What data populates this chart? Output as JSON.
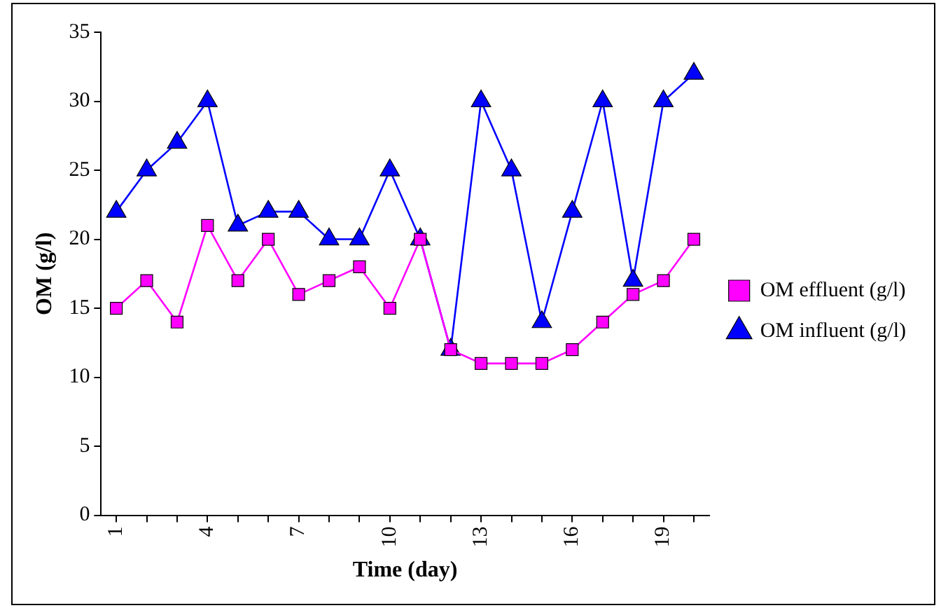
{
  "chart_data": {
    "type": "line",
    "xlabel": "Time (day)",
    "ylabel": "OM (g/l)",
    "categories": [
      "1",
      null,
      null,
      "4",
      null,
      null,
      "7",
      null,
      null,
      "10",
      null,
      null,
      "13",
      null,
      null,
      "16",
      null,
      null,
      "19",
      null
    ],
    "series": [
      {
        "name": "OM effluent (g/l)",
        "color": "#ff00ff",
        "marker": "square",
        "values": [
          15,
          17,
          14,
          21,
          17,
          20,
          16,
          17,
          18,
          15,
          20,
          12,
          11,
          11,
          11,
          12,
          14,
          16,
          17,
          20
        ]
      },
      {
        "name": "OM influent (g/l)",
        "color": "#0000ff",
        "marker": "triangle",
        "values": [
          22,
          25,
          27,
          30,
          21,
          22,
          22,
          20,
          20,
          25,
          20,
          12,
          30,
          25,
          14,
          22,
          30,
          17,
          30,
          32
        ]
      }
    ],
    "ylim": [
      0,
      35
    ],
    "yticks": [
      0,
      5,
      10,
      15,
      20,
      25,
      30,
      35
    ],
    "grid": false,
    "legend": "right",
    "line_style": "solid"
  }
}
